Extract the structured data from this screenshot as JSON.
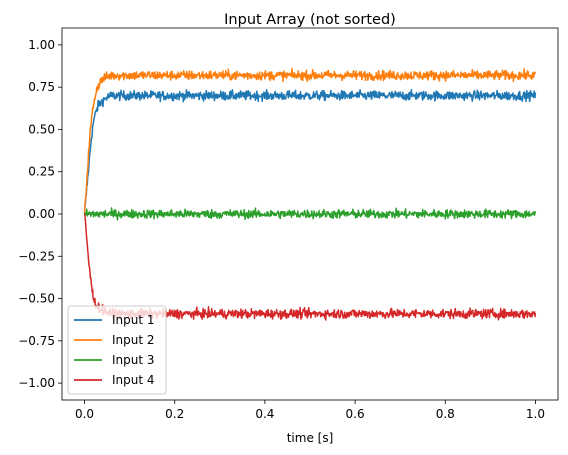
{
  "chart_data": {
    "type": "line",
    "title": "Input Array (not sorted)",
    "xlabel": "time [s]",
    "ylabel": "",
    "xlim": [
      -0.05,
      1.05
    ],
    "ylim": [
      -1.1,
      1.1
    ],
    "xticks": [
      0.0,
      0.2,
      0.4,
      0.6,
      0.8,
      1.0
    ],
    "xtick_labels": [
      "0.0",
      "0.2",
      "0.4",
      "0.6",
      "0.8",
      "1.0"
    ],
    "yticks": [
      -1.0,
      -0.75,
      -0.5,
      -0.25,
      0.0,
      0.25,
      0.5,
      0.75,
      1.0
    ],
    "ytick_labels": [
      "−1.00",
      "−0.75",
      "−0.50",
      "−0.25",
      "0.00",
      "0.25",
      "0.50",
      "0.75",
      "1.00"
    ],
    "grid": false,
    "legend_position": "lower-left",
    "series": [
      {
        "name": "Input 1",
        "color": "#1f77b4",
        "x": [
          0.0,
          0.005,
          0.01,
          0.015,
          0.02,
          0.025,
          0.03,
          0.04,
          0.05,
          0.06,
          0.08,
          0.1,
          0.15,
          0.2,
          0.3,
          0.4,
          0.5,
          0.6,
          0.7,
          0.8,
          0.9,
          1.0
        ],
        "y": [
          0.0,
          0.15,
          0.3,
          0.45,
          0.55,
          0.6,
          0.64,
          0.67,
          0.69,
          0.7,
          0.7,
          0.7,
          0.7,
          0.7,
          0.7,
          0.7,
          0.7,
          0.7,
          0.7,
          0.7,
          0.7,
          0.7
        ],
        "noise": 0.014
      },
      {
        "name": "Input 2",
        "color": "#ff7f0e",
        "x": [
          0.0,
          0.005,
          0.01,
          0.015,
          0.02,
          0.025,
          0.03,
          0.04,
          0.05,
          0.06,
          0.08,
          0.1,
          0.15,
          0.2,
          0.3,
          0.4,
          0.5,
          0.6,
          0.7,
          0.8,
          0.9,
          1.0
        ],
        "y": [
          0.0,
          0.2,
          0.4,
          0.55,
          0.65,
          0.72,
          0.76,
          0.8,
          0.81,
          0.82,
          0.82,
          0.82,
          0.82,
          0.82,
          0.82,
          0.82,
          0.82,
          0.82,
          0.82,
          0.82,
          0.82,
          0.82
        ],
        "noise": 0.014
      },
      {
        "name": "Input 3",
        "color": "#2ca02c",
        "x": [
          0.0,
          0.1,
          0.2,
          0.3,
          0.4,
          0.5,
          0.6,
          0.7,
          0.8,
          0.9,
          1.0
        ],
        "y": [
          0.0,
          0.0,
          0.0,
          0.0,
          0.0,
          0.0,
          0.0,
          0.0,
          0.0,
          0.0,
          0.0
        ],
        "noise": 0.013
      },
      {
        "name": "Input 4",
        "color": "#d62728",
        "x": [
          0.0,
          0.005,
          0.01,
          0.015,
          0.02,
          0.025,
          0.03,
          0.04,
          0.05,
          0.06,
          0.08,
          0.1,
          0.15,
          0.2,
          0.3,
          0.4,
          0.5,
          0.6,
          0.7,
          0.8,
          0.9,
          1.0
        ],
        "y": [
          0.0,
          -0.15,
          -0.3,
          -0.42,
          -0.5,
          -0.53,
          -0.55,
          -0.57,
          -0.58,
          -0.59,
          -0.59,
          -0.59,
          -0.59,
          -0.59,
          -0.59,
          -0.59,
          -0.59,
          -0.59,
          -0.59,
          -0.59,
          -0.59,
          -0.59
        ],
        "noise": 0.014
      }
    ]
  }
}
